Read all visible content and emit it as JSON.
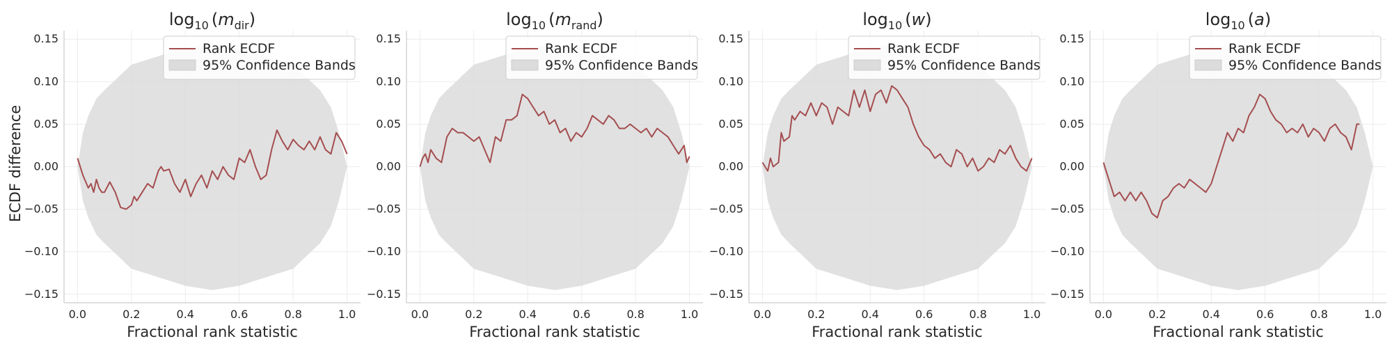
{
  "figure": {
    "ylabel": "ECDF difference",
    "xlabel": "Fractional rank statistic"
  },
  "colors": {
    "line": "#a44d4f",
    "band_fill": "#dcdcdc",
    "grid": "#ececec",
    "legend_border": "#cccccc"
  },
  "legend": {
    "line_label": "Rank ECDF",
    "band_label": "95% Confidence Bands",
    "placement": "upper-right"
  },
  "chart_data": [
    {
      "type": "line",
      "title": {
        "base": "log",
        "sub": "10",
        "var": "m",
        "var_sub": "dir"
      },
      "xlabel": "Fractional rank statistic",
      "ylabel": "ECDF difference",
      "xlim": [
        -0.05,
        1.05
      ],
      "ylim": [
        -0.16,
        0.16
      ],
      "grid": true,
      "xticks": [
        "0.0",
        "0.2",
        "0.4",
        "0.6",
        "0.8",
        "1.0"
      ],
      "yticks": [
        "0.15",
        "0.10",
        "0.05",
        "0.00",
        "−0.05",
        "−0.10",
        "−0.15"
      ],
      "series": [
        {
          "name": "Rank ECDF",
          "x": [
            0.0,
            0.02,
            0.04,
            0.05,
            0.06,
            0.07,
            0.08,
            0.09,
            0.1,
            0.12,
            0.14,
            0.16,
            0.18,
            0.2,
            0.21,
            0.22,
            0.24,
            0.26,
            0.28,
            0.3,
            0.31,
            0.32,
            0.34,
            0.36,
            0.38,
            0.4,
            0.42,
            0.44,
            0.46,
            0.48,
            0.5,
            0.52,
            0.54,
            0.56,
            0.58,
            0.6,
            0.62,
            0.64,
            0.66,
            0.68,
            0.7,
            0.72,
            0.74,
            0.76,
            0.78,
            0.8,
            0.82,
            0.84,
            0.86,
            0.88,
            0.9,
            0.92,
            0.94,
            0.96,
            0.98,
            1.0
          ],
          "y": [
            0.01,
            -0.01,
            -0.025,
            -0.02,
            -0.03,
            -0.015,
            -0.025,
            -0.03,
            -0.03,
            -0.018,
            -0.03,
            -0.048,
            -0.05,
            -0.045,
            -0.035,
            -0.04,
            -0.03,
            -0.02,
            -0.025,
            -0.005,
            0.0,
            -0.005,
            -0.003,
            -0.02,
            -0.03,
            -0.015,
            -0.035,
            -0.02,
            -0.01,
            -0.025,
            -0.005,
            -0.015,
            0.0,
            -0.01,
            -0.015,
            0.01,
            0.005,
            0.02,
            0.0,
            -0.015,
            -0.01,
            0.02,
            0.043,
            0.03,
            0.02,
            0.032,
            0.025,
            0.02,
            0.03,
            0.02,
            0.035,
            0.02,
            0.015,
            0.04,
            0.03,
            0.015
          ]
        },
        {
          "name": "95% Confidence Bands",
          "x": [
            0.0,
            0.02,
            0.04,
            0.07,
            0.1,
            0.15,
            0.2,
            0.3,
            0.4,
            0.5,
            0.6,
            0.7,
            0.8,
            0.85,
            0.9,
            0.94,
            0.97,
            1.0
          ],
          "upper": [
            0.0,
            0.04,
            0.06,
            0.08,
            0.09,
            0.105,
            0.12,
            0.13,
            0.14,
            0.145,
            0.14,
            0.13,
            0.12,
            0.105,
            0.09,
            0.07,
            0.04,
            0.0
          ],
          "lower": [
            0.0,
            -0.04,
            -0.06,
            -0.08,
            -0.09,
            -0.105,
            -0.12,
            -0.13,
            -0.14,
            -0.145,
            -0.14,
            -0.13,
            -0.12,
            -0.105,
            -0.09,
            -0.07,
            -0.04,
            0.0
          ]
        }
      ]
    },
    {
      "type": "line",
      "title": {
        "base": "log",
        "sub": "10",
        "var": "m",
        "var_sub": "rand"
      },
      "xlabel": "Fractional rank statistic",
      "ylabel": "",
      "xlim": [
        -0.05,
        1.05
      ],
      "ylim": [
        -0.16,
        0.16
      ],
      "grid": true,
      "xticks": [
        "0.0",
        "0.2",
        "0.4",
        "0.6",
        "0.8",
        "1.0"
      ],
      "yticks": [
        "0.15",
        "0.10",
        "0.05",
        "0.00",
        "−0.05",
        "−0.10",
        "−0.15"
      ],
      "series": [
        {
          "name": "Rank ECDF",
          "x": [
            0.0,
            0.01,
            0.02,
            0.03,
            0.04,
            0.06,
            0.08,
            0.1,
            0.12,
            0.14,
            0.16,
            0.18,
            0.2,
            0.22,
            0.24,
            0.26,
            0.28,
            0.3,
            0.32,
            0.34,
            0.36,
            0.38,
            0.4,
            0.42,
            0.44,
            0.46,
            0.48,
            0.5,
            0.52,
            0.54,
            0.56,
            0.58,
            0.6,
            0.62,
            0.64,
            0.66,
            0.68,
            0.7,
            0.72,
            0.74,
            0.76,
            0.78,
            0.8,
            0.82,
            0.84,
            0.86,
            0.88,
            0.9,
            0.92,
            0.94,
            0.96,
            0.98,
            0.99,
            1.0
          ],
          "y": [
            0.0,
            0.01,
            0.015,
            0.005,
            0.02,
            0.01,
            0.005,
            0.035,
            0.045,
            0.04,
            0.04,
            0.035,
            0.03,
            0.035,
            0.02,
            0.005,
            0.035,
            0.03,
            0.055,
            0.055,
            0.06,
            0.085,
            0.08,
            0.07,
            0.06,
            0.065,
            0.05,
            0.055,
            0.04,
            0.045,
            0.03,
            0.04,
            0.035,
            0.045,
            0.06,
            0.055,
            0.05,
            0.06,
            0.055,
            0.045,
            0.045,
            0.05,
            0.045,
            0.04,
            0.045,
            0.035,
            0.045,
            0.04,
            0.035,
            0.025,
            0.015,
            0.025,
            0.005,
            0.012
          ]
        },
        {
          "name": "95% Confidence Bands",
          "x": [
            0.0,
            0.02,
            0.04,
            0.07,
            0.1,
            0.15,
            0.2,
            0.3,
            0.4,
            0.5,
            0.6,
            0.7,
            0.8,
            0.85,
            0.9,
            0.94,
            0.97,
            1.0
          ],
          "upper": [
            0.0,
            0.04,
            0.06,
            0.08,
            0.09,
            0.105,
            0.12,
            0.13,
            0.14,
            0.145,
            0.14,
            0.13,
            0.12,
            0.105,
            0.09,
            0.07,
            0.04,
            0.0
          ],
          "lower": [
            0.0,
            -0.04,
            -0.06,
            -0.08,
            -0.09,
            -0.105,
            -0.12,
            -0.13,
            -0.14,
            -0.145,
            -0.14,
            -0.13,
            -0.12,
            -0.105,
            -0.09,
            -0.07,
            -0.04,
            0.0
          ]
        }
      ]
    },
    {
      "type": "line",
      "title": {
        "base": "log",
        "sub": "10",
        "var": "w",
        "var_sub": ""
      },
      "xlabel": "Fractional rank statistic",
      "ylabel": "",
      "xlim": [
        -0.05,
        1.05
      ],
      "ylim": [
        -0.16,
        0.16
      ],
      "grid": true,
      "xticks": [
        "0.0",
        "0.2",
        "0.4",
        "0.6",
        "0.8",
        "1.0"
      ],
      "yticks": [
        "0.15",
        "0.10",
        "0.05",
        "0.00",
        "−0.05",
        "−0.10",
        "−0.15"
      ],
      "series": [
        {
          "name": "Rank ECDF",
          "x": [
            0.0,
            0.02,
            0.03,
            0.04,
            0.06,
            0.07,
            0.08,
            0.1,
            0.11,
            0.12,
            0.14,
            0.16,
            0.18,
            0.2,
            0.22,
            0.24,
            0.26,
            0.28,
            0.3,
            0.32,
            0.34,
            0.35,
            0.36,
            0.38,
            0.4,
            0.42,
            0.44,
            0.46,
            0.48,
            0.5,
            0.52,
            0.54,
            0.56,
            0.58,
            0.6,
            0.62,
            0.64,
            0.66,
            0.68,
            0.7,
            0.72,
            0.74,
            0.76,
            0.78,
            0.8,
            0.82,
            0.84,
            0.86,
            0.88,
            0.9,
            0.92,
            0.94,
            0.96,
            0.98,
            1.0
          ],
          "y": [
            0.005,
            -0.005,
            0.01,
            0.0,
            0.005,
            0.04,
            0.03,
            0.035,
            0.06,
            0.055,
            0.065,
            0.06,
            0.075,
            0.06,
            0.075,
            0.07,
            0.05,
            0.07,
            0.065,
            0.06,
            0.09,
            0.08,
            0.07,
            0.09,
            0.065,
            0.085,
            0.09,
            0.075,
            0.095,
            0.09,
            0.08,
            0.07,
            0.05,
            0.035,
            0.025,
            0.02,
            0.01,
            0.015,
            0.005,
            0.0,
            0.02,
            0.015,
            0.0,
            0.01,
            -0.005,
            0.0,
            0.01,
            0.005,
            0.02,
            0.015,
            0.025,
            0.01,
            0.0,
            -0.005,
            0.01
          ]
        },
        {
          "name": "95% Confidence Bands",
          "x": [
            0.0,
            0.02,
            0.04,
            0.07,
            0.1,
            0.15,
            0.2,
            0.3,
            0.4,
            0.5,
            0.6,
            0.7,
            0.8,
            0.85,
            0.9,
            0.94,
            0.97,
            1.0
          ],
          "upper": [
            0.0,
            0.04,
            0.06,
            0.08,
            0.09,
            0.105,
            0.12,
            0.13,
            0.14,
            0.145,
            0.14,
            0.13,
            0.12,
            0.105,
            0.09,
            0.07,
            0.04,
            0.0
          ],
          "lower": [
            0.0,
            -0.04,
            -0.06,
            -0.08,
            -0.09,
            -0.105,
            -0.12,
            -0.13,
            -0.14,
            -0.145,
            -0.14,
            -0.13,
            -0.12,
            -0.105,
            -0.09,
            -0.07,
            -0.04,
            0.0
          ]
        }
      ]
    },
    {
      "type": "line",
      "title": {
        "base": "log",
        "sub": "10",
        "var": "a",
        "var_sub": ""
      },
      "xlabel": "Fractional rank statistic",
      "ylabel": "",
      "xlim": [
        -0.05,
        1.05
      ],
      "ylim": [
        -0.16,
        0.16
      ],
      "grid": true,
      "xticks": [
        "0.0",
        "0.2",
        "0.4",
        "0.6",
        "0.8",
        "1.0"
      ],
      "yticks": [
        "0.15",
        "0.10",
        "0.05",
        "0.00",
        "−0.05",
        "−0.10",
        "−0.15"
      ],
      "series": [
        {
          "name": "Rank ECDF",
          "x": [
            0.0,
            0.02,
            0.04,
            0.06,
            0.08,
            0.1,
            0.12,
            0.14,
            0.16,
            0.18,
            0.2,
            0.22,
            0.24,
            0.26,
            0.28,
            0.3,
            0.32,
            0.34,
            0.36,
            0.38,
            0.4,
            0.42,
            0.44,
            0.46,
            0.48,
            0.5,
            0.52,
            0.54,
            0.56,
            0.58,
            0.6,
            0.62,
            0.64,
            0.66,
            0.68,
            0.7,
            0.72,
            0.74,
            0.76,
            0.78,
            0.8,
            0.82,
            0.84,
            0.86,
            0.88,
            0.9,
            0.92,
            0.94,
            0.95
          ],
          "y": [
            0.005,
            -0.015,
            -0.035,
            -0.03,
            -0.04,
            -0.03,
            -0.04,
            -0.03,
            -0.04,
            -0.055,
            -0.06,
            -0.04,
            -0.035,
            -0.025,
            -0.02,
            -0.025,
            -0.015,
            -0.02,
            -0.025,
            -0.03,
            -0.02,
            0.0,
            0.02,
            0.04,
            0.03,
            0.045,
            0.04,
            0.06,
            0.07,
            0.085,
            0.08,
            0.065,
            0.055,
            0.05,
            0.04,
            0.045,
            0.04,
            0.05,
            0.035,
            0.045,
            0.04,
            0.03,
            0.045,
            0.05,
            0.04,
            0.035,
            0.02,
            0.05,
            0.05
          ]
        },
        {
          "name": "95% Confidence Bands",
          "x": [
            0.0,
            0.02,
            0.04,
            0.07,
            0.1,
            0.15,
            0.2,
            0.3,
            0.4,
            0.5,
            0.6,
            0.7,
            0.8,
            0.85,
            0.9,
            0.94,
            0.97,
            1.0
          ],
          "upper": [
            0.0,
            0.04,
            0.06,
            0.08,
            0.09,
            0.105,
            0.12,
            0.13,
            0.14,
            0.145,
            0.14,
            0.13,
            0.12,
            0.105,
            0.09,
            0.07,
            0.04,
            0.0
          ],
          "lower": [
            0.0,
            -0.04,
            -0.06,
            -0.08,
            -0.09,
            -0.105,
            -0.12,
            -0.13,
            -0.14,
            -0.145,
            -0.14,
            -0.13,
            -0.12,
            -0.105,
            -0.09,
            -0.07,
            -0.04,
            0.0
          ]
        }
      ]
    }
  ]
}
